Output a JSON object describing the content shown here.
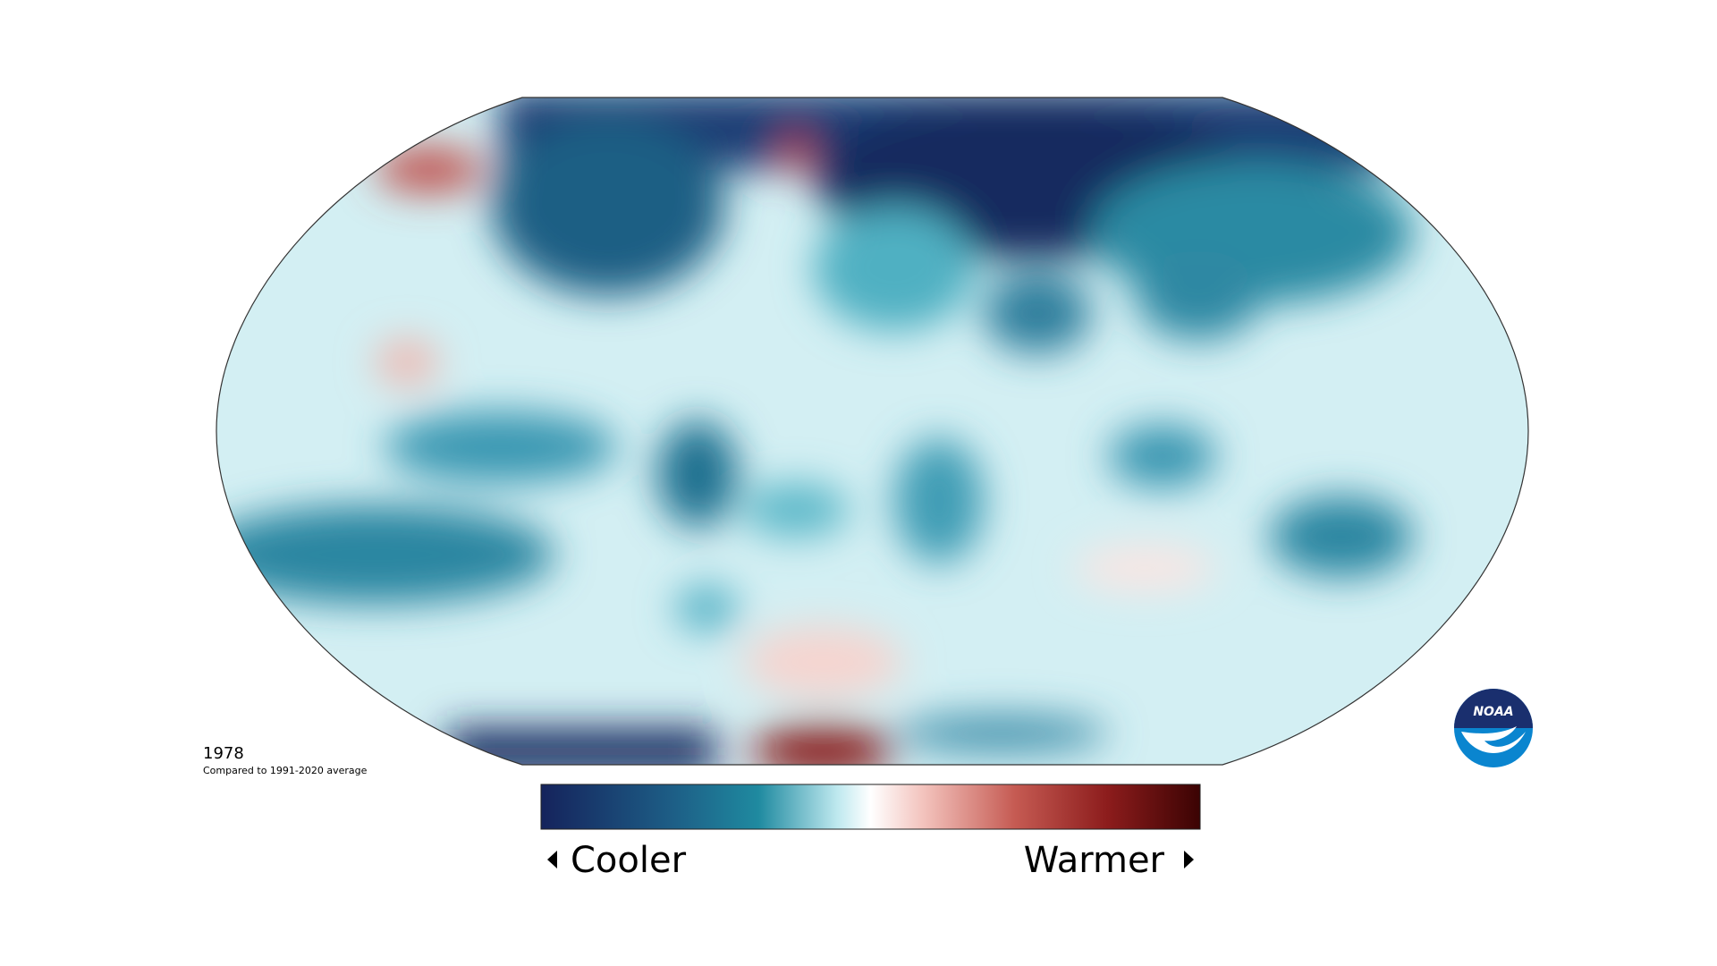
{
  "map": {
    "year": "1978",
    "subtitle": "Compared to 1991-2020 average",
    "legend": {
      "low": "Cooler",
      "high": "Warmer"
    },
    "logo": "NOAA"
  }
}
